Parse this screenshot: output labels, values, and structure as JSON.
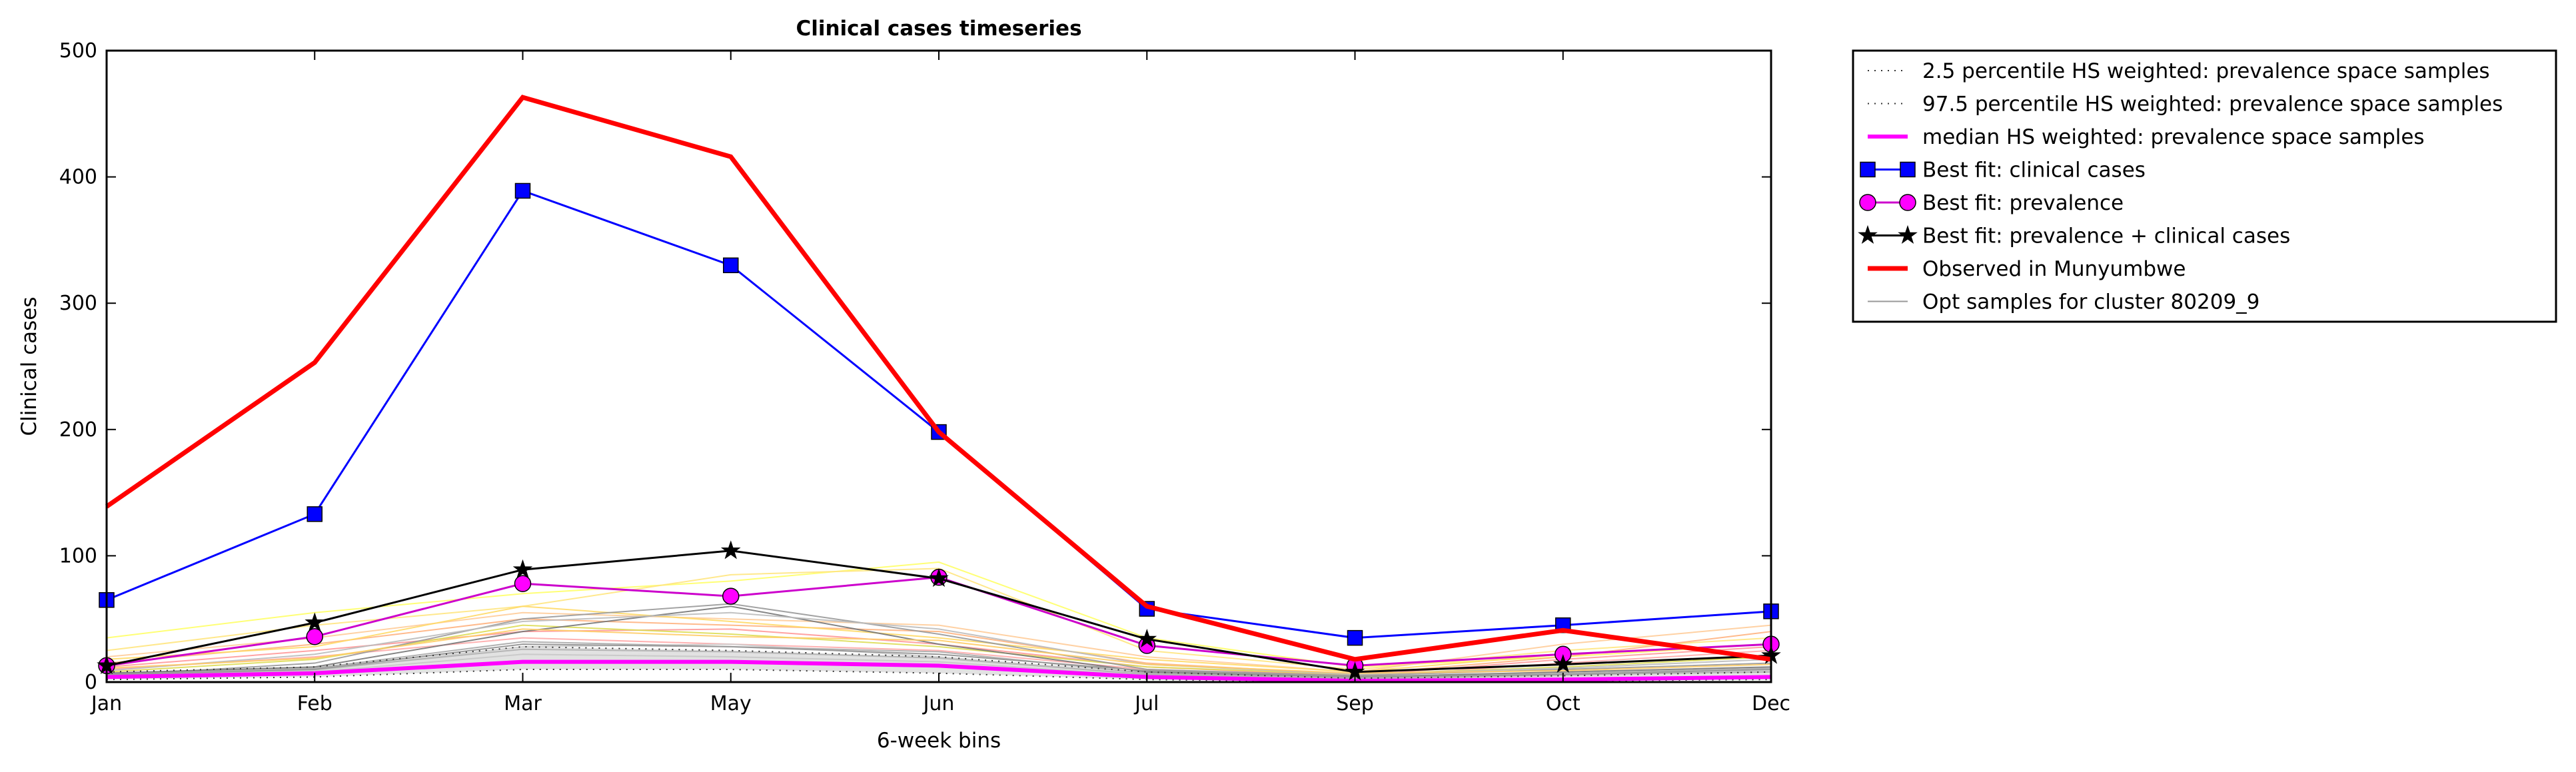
{
  "chart_data": {
    "type": "line",
    "title": "Clinical cases timeseries",
    "xlabel": "6-week bins",
    "ylabel": "Clinical cases",
    "categories": [
      "Jan",
      "Feb",
      "Mar",
      "May",
      "Jun",
      "Jul",
      "Sep",
      "Oct",
      "Dec"
    ],
    "ylim": [
      0,
      500
    ],
    "yticks": [
      "0",
      "100",
      "200",
      "300",
      "400",
      "500"
    ],
    "grid": false,
    "legend_position": "outside-right",
    "series": [
      {
        "name": "2.5 percentile HS weighted: prevalence space samples",
        "color": "#333333",
        "style": "dotted",
        "values": [
          2,
          4,
          10,
          10,
          7,
          2,
          0,
          1,
          2
        ]
      },
      {
        "name": "97.5 percentile HS weighted: prevalence space samples",
        "color": "#333333",
        "style": "dotted",
        "values": [
          8,
          12,
          28,
          25,
          20,
          8,
          3,
          5,
          8
        ]
      },
      {
        "name": "median HS weighted: prevalence space samples",
        "color": "#ff00ff",
        "style": "thick",
        "values": [
          4,
          7,
          16,
          16,
          13,
          4,
          1,
          2,
          4
        ]
      },
      {
        "name": "Best fit: clinical cases",
        "color": "#0000ff",
        "marker": "square",
        "values": [
          65,
          133,
          389,
          330,
          198,
          58,
          35,
          45,
          56
        ]
      },
      {
        "name": "Best fit: prevalence",
        "color": "#cc00cc",
        "marker": "circle",
        "values": [
          13,
          36,
          78,
          68,
          83,
          29,
          13,
          22,
          30
        ]
      },
      {
        "name": "Best fit: prevalence + clinical cases",
        "color": "#000000",
        "marker": "star",
        "values": [
          13,
          47,
          89,
          104,
          82,
          34,
          8,
          14,
          21
        ]
      },
      {
        "name": "Observed in Munyumbwe",
        "color": "#ff0000",
        "style": "observed",
        "values": [
          139,
          253,
          463,
          416,
          198,
          60,
          18,
          41,
          18
        ]
      },
      {
        "name": "Opt samples for cluster 80209_9",
        "color": "#999999",
        "style": "thin",
        "values": [
          6,
          10,
          30,
          28,
          22,
          9,
          4,
          6,
          10
        ]
      }
    ],
    "background_sample_lines": [
      {
        "color": "#ffff66",
        "values": [
          35,
          55,
          70,
          80,
          95,
          35,
          12,
          20,
          30
        ]
      },
      {
        "color": "#ffe680",
        "values": [
          25,
          45,
          60,
          85,
          90,
          25,
          10,
          25,
          35
        ]
      },
      {
        "color": "#ffcc99",
        "values": [
          20,
          35,
          55,
          50,
          45,
          20,
          8,
          30,
          45
        ]
      },
      {
        "color": "#ffb380",
        "values": [
          15,
          30,
          50,
          45,
          40,
          15,
          6,
          20,
          40
        ]
      },
      {
        "color": "#ff9999",
        "values": [
          12,
          25,
          40,
          42,
          30,
          12,
          5,
          18,
          28
        ]
      },
      {
        "color": "#ffaaaa",
        "values": [
          10,
          20,
          35,
          30,
          25,
          10,
          4,
          15,
          25
        ]
      },
      {
        "color": "#ffd966",
        "values": [
          18,
          28,
          60,
          48,
          35,
          18,
          8,
          22,
          30
        ]
      },
      {
        "color": "#dddd55",
        "values": [
          8,
          18,
          45,
          38,
          28,
          12,
          6,
          12,
          20
        ]
      },
      {
        "color": "#999999",
        "values": [
          5,
          15,
          50,
          62,
          38,
          10,
          5,
          10,
          15
        ]
      },
      {
        "color": "#777777",
        "values": [
          7,
          12,
          40,
          60,
          30,
          8,
          4,
          8,
          12
        ]
      },
      {
        "color": "#bbbbbb",
        "values": [
          9,
          22,
          48,
          55,
          42,
          14,
          6,
          11,
          18
        ]
      },
      {
        "color": "#cccccc",
        "values": [
          4,
          9,
          28,
          30,
          20,
          6,
          3,
          6,
          10
        ]
      },
      {
        "color": "#aaaaaa",
        "values": [
          6,
          11,
          32,
          28,
          24,
          7,
          3,
          7,
          11
        ]
      },
      {
        "color": "#c8c8c8",
        "values": [
          3,
          8,
          22,
          20,
          16,
          5,
          2,
          5,
          9
        ]
      },
      {
        "color": "#b0b0b0",
        "values": [
          5,
          10,
          26,
          24,
          19,
          6,
          2,
          6,
          8
        ]
      },
      {
        "color": "#ffcc66",
        "values": [
          11,
          19,
          42,
          36,
          33,
          14,
          7,
          9,
          14
        ]
      }
    ]
  }
}
